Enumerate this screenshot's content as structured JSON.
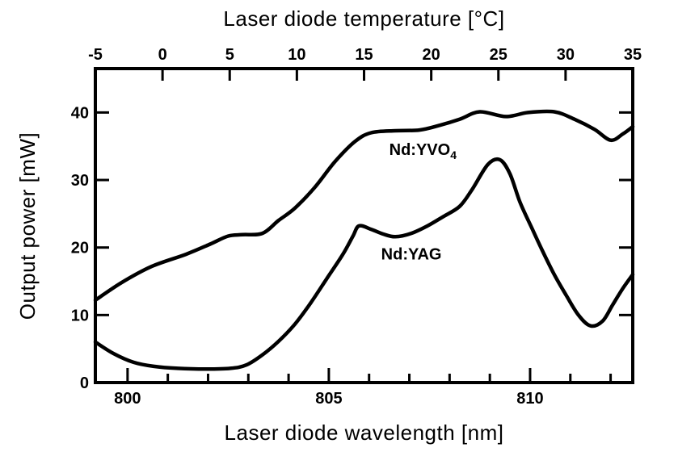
{
  "figure": {
    "background_color": "#ffffff",
    "ink_color": "#000000"
  },
  "chart_data": {
    "type": "line",
    "title": "",
    "grid": false,
    "legend_position": "inline-annotations",
    "top_axis": {
      "label": "Laser diode temperature [°C]",
      "unit": "°C",
      "range": [
        -5,
        35
      ],
      "ticks": [
        -5,
        0,
        5,
        10,
        15,
        20,
        25,
        30,
        35
      ]
    },
    "bottom_axis": {
      "label": "Laser diode wavelength [nm]",
      "unit": "nm",
      "range": [
        799.2,
        812.55
      ],
      "major_ticks": [
        800,
        805,
        810
      ],
      "minor_ticks": [
        801,
        802,
        803,
        804,
        806,
        807,
        808,
        809,
        811,
        812
      ]
    },
    "left_axis": {
      "label": "Output power [mW]",
      "unit": "mW",
      "range": [
        0,
        46.5
      ],
      "ticks": [
        0,
        10,
        20,
        30,
        40
      ]
    },
    "right_axis": {
      "mirror_ticks": [
        10,
        20,
        30,
        40
      ]
    },
    "series": [
      {
        "name": "Nd:YVO4",
        "color": "#000000",
        "points": [
          [
            799.2,
            12.2
          ],
          [
            799.85,
            14.8
          ],
          [
            800.6,
            17.2
          ],
          [
            801.45,
            19.0
          ],
          [
            802.05,
            20.5
          ],
          [
            802.5,
            21.7
          ],
          [
            802.85,
            21.9
          ],
          [
            803.35,
            22.1
          ],
          [
            803.75,
            24.0
          ],
          [
            804.15,
            25.8
          ],
          [
            804.65,
            28.9
          ],
          [
            805.15,
            32.7
          ],
          [
            805.65,
            35.7
          ],
          [
            806.05,
            37.0
          ],
          [
            806.65,
            37.3
          ],
          [
            807.25,
            37.4
          ],
          [
            807.75,
            38.1
          ],
          [
            808.25,
            39.0
          ],
          [
            808.75,
            40.1
          ],
          [
            809.4,
            39.4
          ],
          [
            809.95,
            40.0
          ],
          [
            810.6,
            40.1
          ],
          [
            811.1,
            39.0
          ],
          [
            811.6,
            37.5
          ],
          [
            812.0,
            35.9
          ],
          [
            812.3,
            36.8
          ],
          [
            812.55,
            37.9
          ]
        ]
      },
      {
        "name": "Nd:YAG",
        "color": "#000000",
        "points": [
          [
            799.2,
            6.0
          ],
          [
            799.65,
            4.3
          ],
          [
            800.15,
            3.0
          ],
          [
            800.65,
            2.4
          ],
          [
            801.25,
            2.1
          ],
          [
            801.95,
            2.0
          ],
          [
            802.55,
            2.1
          ],
          [
            802.95,
            2.6
          ],
          [
            803.35,
            4.1
          ],
          [
            803.75,
            6.1
          ],
          [
            804.15,
            8.6
          ],
          [
            804.55,
            11.8
          ],
          [
            804.95,
            15.4
          ],
          [
            805.35,
            19.0
          ],
          [
            805.6,
            21.7
          ],
          [
            805.75,
            23.2
          ],
          [
            806.05,
            22.7
          ],
          [
            806.35,
            22.0
          ],
          [
            806.65,
            21.6
          ],
          [
            807.05,
            22.1
          ],
          [
            807.45,
            23.2
          ],
          [
            807.85,
            24.6
          ],
          [
            808.25,
            26.1
          ],
          [
            808.55,
            28.5
          ],
          [
            808.95,
            32.3
          ],
          [
            809.25,
            33.0
          ],
          [
            809.5,
            30.9
          ],
          [
            809.75,
            26.7
          ],
          [
            810.05,
            22.8
          ],
          [
            810.3,
            19.6
          ],
          [
            810.6,
            16.0
          ],
          [
            810.9,
            12.9
          ],
          [
            811.2,
            10.0
          ],
          [
            811.5,
            8.4
          ],
          [
            811.8,
            9.1
          ],
          [
            812.05,
            11.5
          ],
          [
            812.3,
            13.9
          ],
          [
            812.55,
            16.0
          ]
        ]
      }
    ],
    "annotations": [
      {
        "series": "Nd:YVO4",
        "text_base": "Nd:YVO",
        "text_sub": "4",
        "x": 806.5,
        "y": 33.7,
        "anchor": "start"
      },
      {
        "series": "Nd:YAG",
        "text_base": "Nd:YAG",
        "text_sub": "",
        "x": 806.3,
        "y": 18.2,
        "anchor": "start"
      }
    ]
  }
}
